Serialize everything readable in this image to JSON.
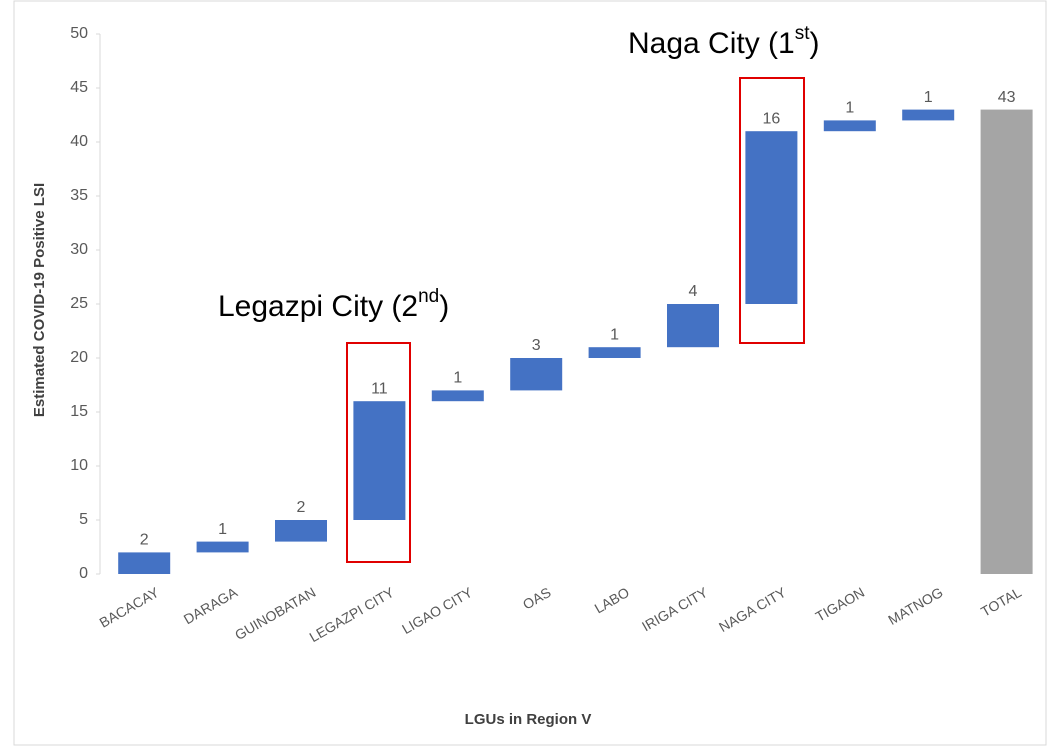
{
  "chart_data": {
    "type": "waterfall",
    "categories": [
      "BACACAY",
      "DARAGA",
      "GUINOBATAN",
      "LEGAZPI CITY",
      "LIGAO CITY",
      "OAS",
      "LABO",
      "IRIGA CITY",
      "NAGA CITY",
      "TIGAON",
      "MATNOG",
      "TOTAL"
    ],
    "values": [
      2,
      1,
      2,
      11,
      1,
      3,
      1,
      4,
      16,
      1,
      1,
      43
    ],
    "color": "#4472c4",
    "total_color": "#a5a5a5",
    "ylim": [
      0,
      50
    ],
    "yticks": [
      0,
      5,
      10,
      15,
      20,
      25,
      30,
      35,
      40,
      45,
      50
    ],
    "ylabel": "Estimated COVID-19 Positive LSI",
    "xlabel": "LGUs in Region V",
    "annotations": [
      {
        "text": "Legazpi City (2",
        "sup": "nd",
        "close": ")"
      },
      {
        "text": "Naga City (1",
        "sup": "st",
        "close": ")"
      }
    ]
  }
}
